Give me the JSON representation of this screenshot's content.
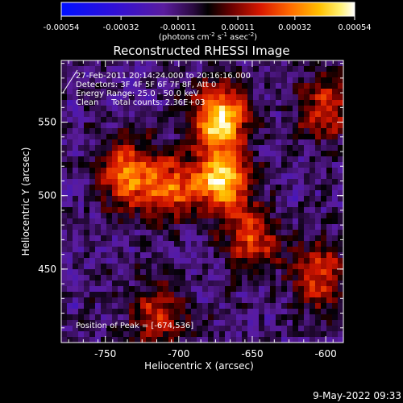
{
  "colorbar": {
    "ticks": [
      "-0.00054",
      "-0.00032",
      "-0.00011",
      "0.00011",
      "0.00032",
      "0.00054"
    ],
    "unit_base": "(photons cm",
    "unit_sup1": "-2",
    "unit_mid1": " s",
    "unit_sup2": "-1",
    "unit_mid2": " asec",
    "unit_sup3": "-2",
    "unit_end": ")"
  },
  "chart_data": {
    "type": "heatmap",
    "title": "Reconstructed RHESSI Image",
    "xlabel": "Heliocentric X (arcsec)",
    "ylabel": "Heliocentric Y (arcsec)",
    "xlim": [
      -780,
      -588
    ],
    "ylim": [
      400,
      592
    ],
    "xticks": [
      "-750",
      "-700",
      "-650",
      "-600"
    ],
    "yticks": [
      "450",
      "500",
      "550"
    ],
    "xtick_values": [
      -750,
      -700,
      -650,
      -600
    ],
    "ytick_values": [
      450,
      500,
      550
    ],
    "clim": [
      -0.00054,
      0.00054
    ],
    "colormap": "blue-purple-red-orange-yellow-white",
    "peak": [
      -674,
      536
    ],
    "bright_regions": [
      {
        "x": -672,
        "y": 552,
        "value": 0.00054
      },
      {
        "x": -670,
        "y": 510,
        "value": 0.0005
      },
      {
        "x": -735,
        "y": 515,
        "value": 0.0004
      },
      {
        "x": -705,
        "y": 505,
        "value": 0.00036
      },
      {
        "x": -650,
        "y": 470,
        "value": 0.0003
      },
      {
        "x": -605,
        "y": 445,
        "value": 0.0003
      },
      {
        "x": -715,
        "y": 418,
        "value": 0.00028
      },
      {
        "x": -600,
        "y": 560,
        "value": 0.00028
      }
    ],
    "info_lines": [
      "27-Feb-2011 20:14:24.000 to 20:16:16.000",
      "Detectors: 3F 4F 5F 6F 7F 8F, Att 0",
      "Energy Range: 25.0 - 50.0 keV",
      "Clean     Total counts: 2.36E+03"
    ],
    "peak_label": "Position of Peak = [-674,536]"
  },
  "footer": {
    "date": "9-May-2022 09:33"
  }
}
